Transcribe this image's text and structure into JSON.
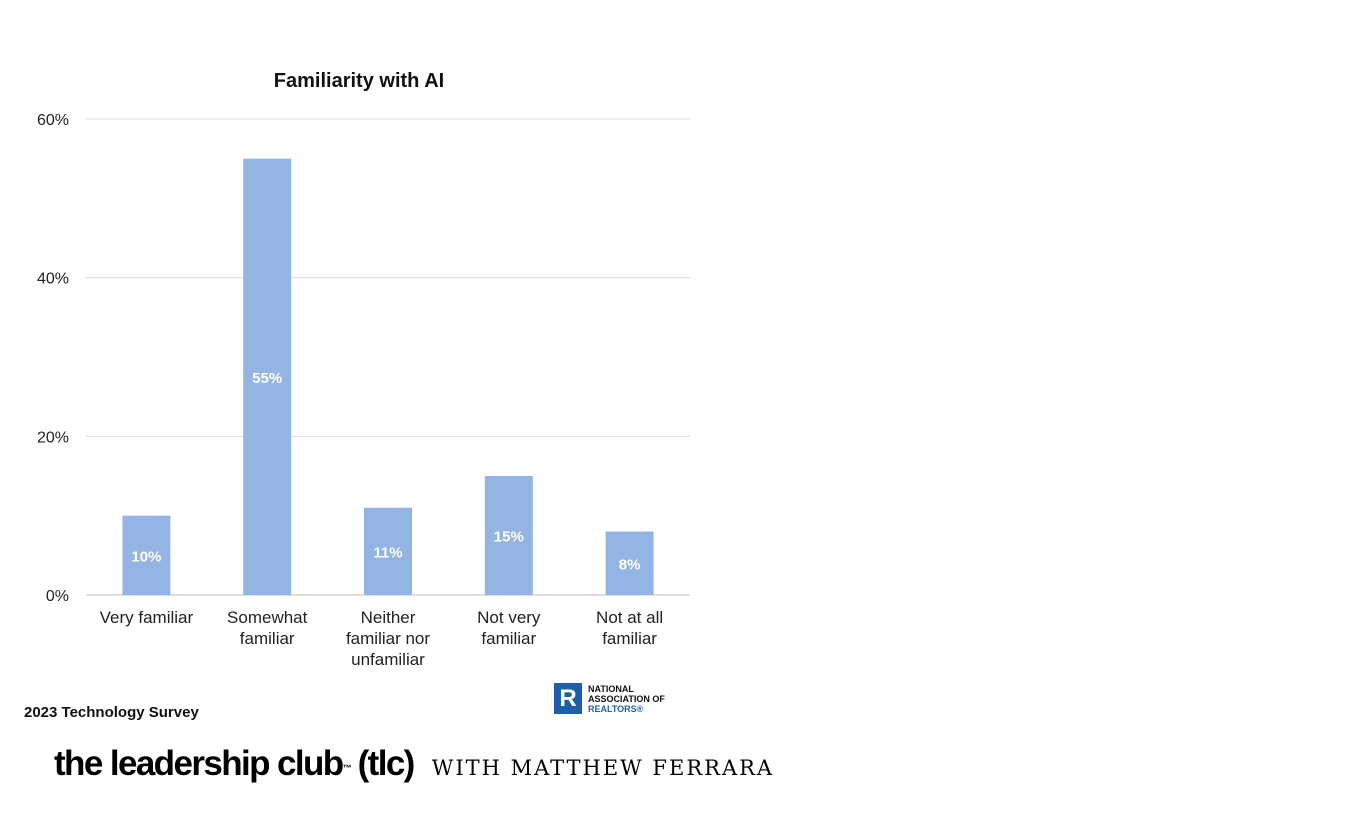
{
  "chart_data": {
    "type": "bar",
    "title": "Familiarity with AI",
    "categories": [
      [
        "Very familiar"
      ],
      [
        "Somewhat",
        "familiar"
      ],
      [
        "Neither",
        "familiar nor",
        "unfamiliar"
      ],
      [
        "Not very",
        "familiar"
      ],
      [
        "Not at all",
        "familiar"
      ]
    ],
    "values": [
      10,
      55,
      11,
      15,
      8
    ],
    "data_labels": [
      "10%",
      "55%",
      "11%",
      "15%",
      "8%"
    ],
    "ylim": [
      0,
      60
    ],
    "yticks": [
      0,
      20,
      40,
      60
    ],
    "ytick_labels": [
      "0%",
      "20%",
      "40%",
      "60%"
    ],
    "grid": true,
    "bar_color": "#94b4e3",
    "label_color": "#ffffff"
  },
  "source": "2023 Technology Survey",
  "logo": {
    "mark": "R",
    "line1": "NATIONAL",
    "line2": "ASSOCIATION OF",
    "line3": "REALTORS®"
  },
  "brand": {
    "name": "the leadership club",
    "tm": "™",
    "abbr": "(tlc)",
    "with": "WITH MATTHEW FERRARA"
  }
}
